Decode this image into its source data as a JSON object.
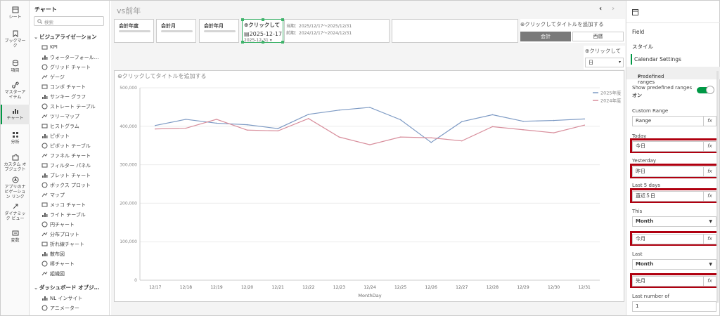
{
  "rail": [
    {
      "name": "sheet",
      "label": "シート",
      "icon": "sheet-icon"
    },
    {
      "name": "bookmark",
      "label": "ブックマー\nク",
      "icon": "bookmark-icon"
    },
    {
      "name": "fields",
      "label": "項目",
      "icon": "database-icon"
    },
    {
      "name": "master",
      "label": "マスターア\nイテム",
      "icon": "link-icon"
    },
    {
      "name": "charts",
      "label": "チャート",
      "icon": "chart-icon",
      "active": true
    },
    {
      "name": "analysis",
      "label": "分析",
      "icon": "analysis-icon"
    },
    {
      "name": "custom",
      "label": "カスタム オ\nブジェクト",
      "icon": "puzzle-icon"
    },
    {
      "name": "app-nav",
      "label": "アプリのナ\nビゲーショ\nン リンク",
      "icon": "navigation-icon"
    },
    {
      "name": "dynamic",
      "label": "ダイナミッ\nク ビュー",
      "icon": "dynamic-view-icon"
    },
    {
      "name": "variables",
      "label": "変数",
      "icon": "variables-icon"
    }
  ],
  "assets": {
    "title": "チャート",
    "search_placeholder": "検索",
    "group1": "ビジュアライゼーション",
    "items1": [
      "KPI",
      "ウォーターフォール…",
      "グリッド チャート",
      "ゲージ",
      "コンボ チャート",
      "サンキー グラフ",
      "ストレート テーブル",
      "ツリーマップ",
      "ヒストグラム",
      "ピボット",
      "ピボット テーブル",
      "ファネル チャート",
      "フィルター パネル",
      "ブレット チャート",
      "ボックス プロット",
      "マップ",
      "メッコ チャート",
      "ライト テーブル",
      "円チャート",
      "分布プロット",
      "折れ線チャート",
      "散布図",
      "棒チャート",
      "組織図"
    ],
    "group2": "ダッシュボード オブジ…",
    "items2": [
      "NL インサイト",
      "アニメーター"
    ]
  },
  "sheet": {
    "title": "vs前年",
    "filters": [
      "会計年度",
      "会計月",
      "会計年月"
    ],
    "date_picker": {
      "title": "クリックして",
      "date": "2025-12-17 -",
      "date2": "2025-12-31"
    },
    "period": {
      "current": "当期：2025/12/17〜2025/12/31",
      "previous": "前期：2024/12/17〜2024/12/31"
    },
    "toggle": {
      "title": "クリックしてタイトルを追加する",
      "on": "会計",
      "off": "西暦"
    },
    "dropdown": {
      "title": "クリックして",
      "value": "日"
    },
    "chart_title": "クリックしてタイトルを追加する"
  },
  "chart_data": {
    "type": "line",
    "title": "",
    "xlabel": "MonthDay",
    "ylabel": "",
    "categories": [
      "12/17",
      "12/18",
      "12/19",
      "12/20",
      "12/21",
      "12/22",
      "12/23",
      "12/24",
      "12/25",
      "12/26",
      "12/27",
      "12/28",
      "12/29",
      "12/30",
      "12/31"
    ],
    "yticks": [
      "500,000",
      "400,000",
      "300,000",
      "200,000",
      "100,000",
      "0"
    ],
    "ylim": [
      0,
      500000
    ],
    "grid": true,
    "legend": "top-right",
    "series": [
      {
        "name": "2025年度",
        "color": "#7d9ac4",
        "values": [
          402000,
          418000,
          408000,
          404000,
          394000,
          431000,
          442000,
          449000,
          417000,
          358000,
          412000,
          430000,
          413000,
          415000,
          419000
        ]
      },
      {
        "name": "2024年度",
        "color": "#d88e9c",
        "values": [
          393000,
          395000,
          418000,
          390000,
          388000,
          420000,
          372000,
          352000,
          372000,
          370000,
          362000,
          399000,
          391000,
          383000,
          403000
        ]
      }
    ]
  },
  "props": {
    "tab_field": "Field",
    "tab_style": "スタイル",
    "tab_calendar": "Calendar Settings",
    "section": "Predefined ranges",
    "show_label": "Show predefined ranges",
    "show_value": "オン",
    "custom_label": "Custom Range",
    "custom_value": "Range",
    "today_label": "Today",
    "today_value": "今日",
    "yesterday_label": "Yesterday",
    "yesterday_value": "昨日",
    "last5_label": "Last 5 days",
    "last5_value": "直近５日",
    "this_label": "This",
    "this_select": "Month",
    "this_value": "今月",
    "last_label": "Last",
    "last_select": "Month",
    "last_value": "先月",
    "lastnum_label": "Last number of",
    "lastnum_value": "1",
    "fx": "fx"
  }
}
